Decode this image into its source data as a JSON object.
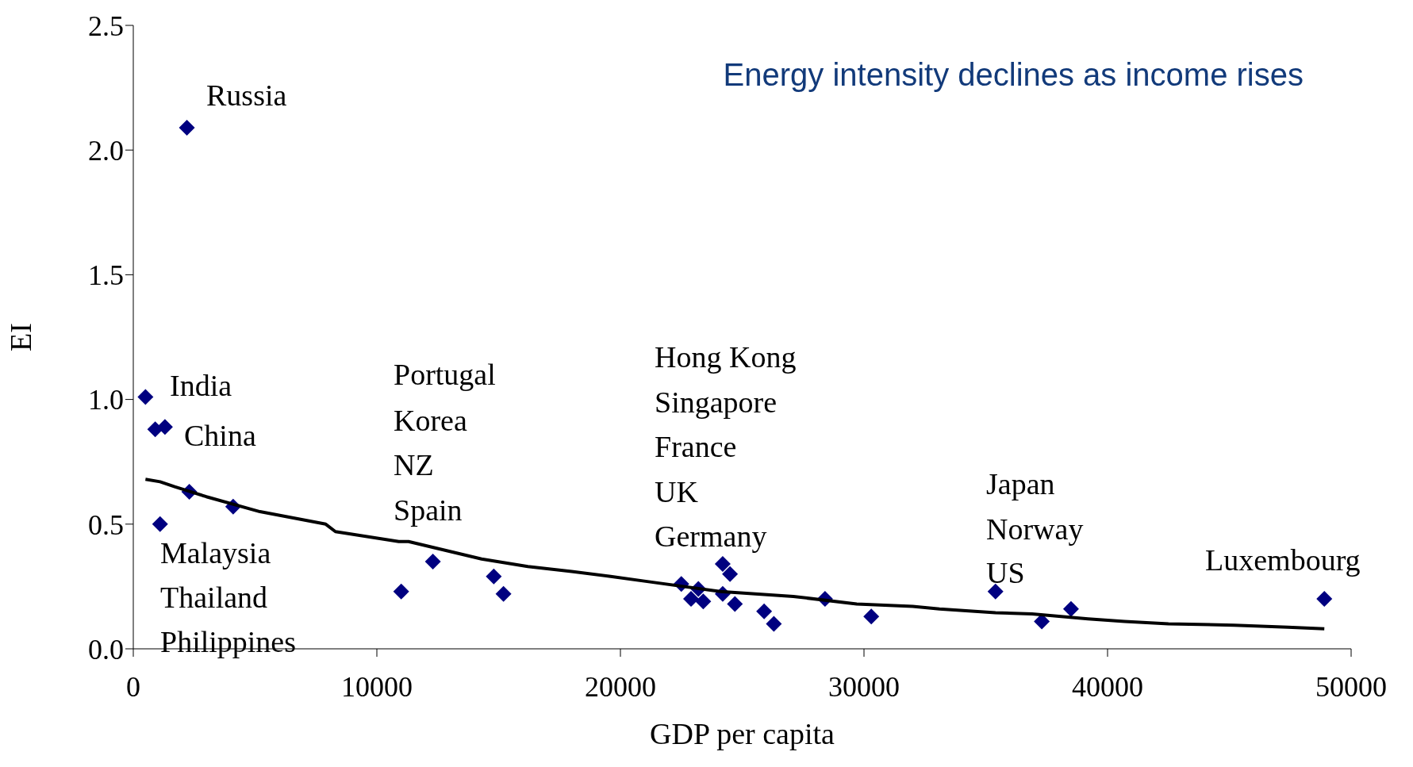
{
  "chart_data": {
    "type": "scatter",
    "title": "Energy intensity declines as income rises",
    "xlabel": "GDP per capita",
    "ylabel": "EI",
    "xlim": [
      0,
      50000
    ],
    "xticks": [
      0,
      10000,
      20000,
      30000,
      40000,
      50000
    ],
    "ylim": [
      0,
      2.5
    ],
    "yticks": [
      {
        "value": 0,
        "label": "0.0"
      },
      {
        "value": 0.5,
        "label": "0.5"
      },
      {
        "value": 1,
        "label": "1.0"
      },
      {
        "value": 1.5,
        "label": "1.5"
      },
      {
        "value": 2,
        "label": "2.0"
      },
      {
        "value": 2.5,
        "label": "2.5"
      }
    ],
    "grid": false,
    "legend": false,
    "series": [
      {
        "type": "scatter",
        "color": "#000080",
        "marker": "diamond",
        "x": [
          2200,
          500,
          900,
          1300,
          2300,
          1100,
          4100,
          11000,
          12300,
          14800,
          15200,
          22500,
          22900,
          23200,
          23400,
          24200,
          24500,
          24200,
          24700,
          25900,
          26300,
          28400,
          30300,
          35400,
          37300,
          38500,
          48900
        ],
        "values": [
          2.09,
          1.01,
          0.88,
          0.89,
          0.63,
          0.5,
          0.57,
          0.23,
          0.35,
          0.29,
          0.22,
          0.26,
          0.2,
          0.24,
          0.19,
          0.34,
          0.3,
          0.22,
          0.18,
          0.15,
          0.1,
          0.2,
          0.13,
          0.23,
          0.11,
          0.16,
          0.2
        ]
      },
      {
        "type": "line",
        "color": "#000000",
        "marker": "none",
        "x": [
          500,
          1100,
          1700,
          3000,
          5200,
          7900,
          8300,
          10900,
          11300,
          14300,
          16200,
          18000,
          19600,
          21100,
          24100,
          27100,
          29700,
          32000,
          33100,
          35400,
          36900,
          39200,
          40700,
          42500,
          45200,
          47400,
          48900
        ],
        "values": [
          0.68,
          0.67,
          0.65,
          0.61,
          0.55,
          0.5,
          0.47,
          0.43,
          0.43,
          0.36,
          0.33,
          0.31,
          0.29,
          0.27,
          0.23,
          0.21,
          0.18,
          0.17,
          0.16,
          0.145,
          0.14,
          0.12,
          0.11,
          0.1,
          0.095,
          0.087,
          0.08
        ]
      }
    ],
    "annotations": [
      "Russia",
      "India",
      "China",
      "Malaysia",
      "Thailand",
      "Philippines",
      "Portugal",
      "Korea",
      "NZ",
      "Spain",
      "Hong Kong",
      "Singapore",
      "France",
      "UK",
      "Germany",
      "Japan",
      "Norway",
      "US",
      "Luxembourg"
    ]
  }
}
